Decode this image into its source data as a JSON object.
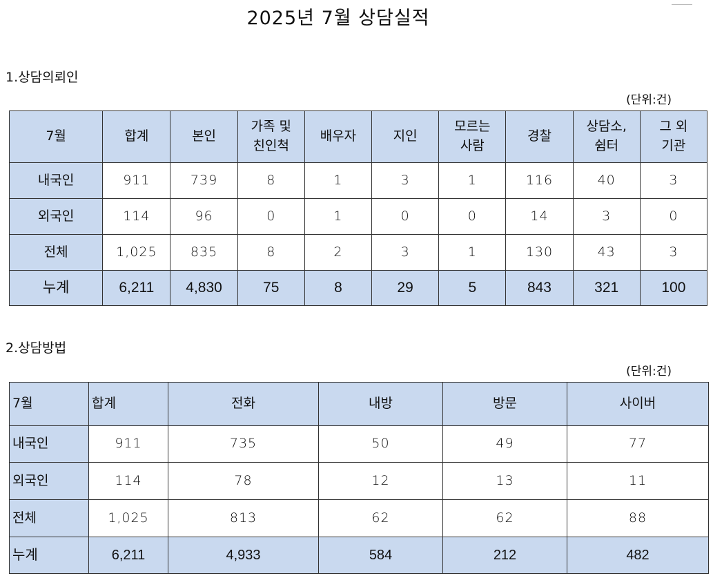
{
  "title": "2025년 7월 상담실적",
  "section1": {
    "heading": "1.상담의뢰인",
    "unit": "(단위:건)",
    "headers": [
      "7월",
      "합계",
      "본인",
      "가족 및\n친인척",
      "배우자",
      "지인",
      "모르는\n사람",
      "경찰",
      "상담소,\n쉼터",
      "그 외\n기관"
    ],
    "rows": [
      {
        "label": "내국인",
        "values": [
          "911",
          "739",
          "8",
          "1",
          "3",
          "1",
          "116",
          "40",
          "3"
        ]
      },
      {
        "label": "외국인",
        "values": [
          "114",
          "96",
          "0",
          "1",
          "0",
          "0",
          "14",
          "3",
          "0"
        ]
      },
      {
        "label": "전체",
        "values": [
          "1,025",
          "835",
          "8",
          "2",
          "3",
          "1",
          "130",
          "43",
          "3"
        ]
      },
      {
        "label": "누계",
        "values": [
          "6,211",
          "4,830",
          "75",
          "8",
          "29",
          "5",
          "843",
          "321",
          "100"
        ]
      }
    ]
  },
  "section2": {
    "heading": "2.상담방법",
    "unit": "(단위:건)",
    "headers": [
      "7월",
      "합계",
      "전화",
      "내방",
      "방문",
      "사이버"
    ],
    "rows": [
      {
        "label": "내국인",
        "values": [
          "911",
          "735",
          "50",
          "49",
          "77"
        ]
      },
      {
        "label": "외국인",
        "values": [
          "114",
          "78",
          "12",
          "13",
          "11"
        ]
      },
      {
        "label": "전체",
        "values": [
          "1,025",
          "813",
          "62",
          "62",
          "88"
        ]
      },
      {
        "label": "누계",
        "values": [
          "6,211",
          "4,933",
          "584",
          "212",
          "482"
        ]
      }
    ]
  }
}
